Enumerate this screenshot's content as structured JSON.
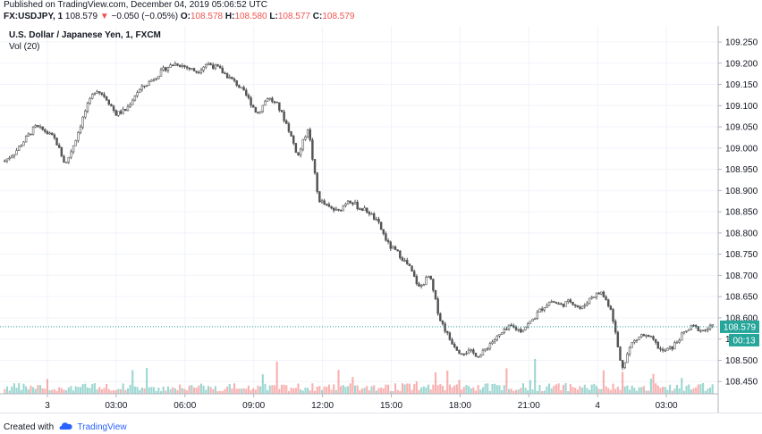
{
  "header": {
    "published": "Published on TradingView.com, December 04, 2019 05:06:52 UTC",
    "symbol": "FX:USDJPY, 1",
    "price": "108.579",
    "change": "−0.050 (−0.05%)",
    "o_label": "O:",
    "o_value": "108.578",
    "h_label": "H:",
    "h_value": "108.580",
    "l_label": "L:",
    "l_value": "108.577",
    "c_label": "C:",
    "c_value": "108.579"
  },
  "footer": {
    "created_with": "Created with",
    "brand": "TradingView"
  },
  "colors": {
    "up": "#26a69a",
    "down": "#ef5350",
    "candle": "#555555",
    "price_line": "#26a69a"
  },
  "chart_data": {
    "type": "line",
    "title": "U.S. Dollar / Japanese Yen, 1, FXCM",
    "volume_label": "Vol (20)",
    "ylim": [
      108.4,
      109.25
    ],
    "y_ticks": [
      "109.250",
      "109.200",
      "109.150",
      "109.100",
      "109.050",
      "109.000",
      "108.950",
      "108.900",
      "108.850",
      "108.800",
      "108.750",
      "108.700",
      "108.650",
      "108.600",
      "108.550",
      "108.500",
      "108.450"
    ],
    "x_ticks": [
      "3",
      "03:00",
      "06:00",
      "09:00",
      "12:00",
      "15:00",
      "18:00",
      "21:00",
      "4",
      "03:00"
    ],
    "last_price": "108.579",
    "countdown": "00:13",
    "series": [
      {
        "values": [
          108.97,
          108.99,
          109.02,
          109.05,
          109.04,
          109.02,
          108.96,
          109.02,
          109.09,
          109.14,
          109.12,
          109.08,
          109.09,
          109.13,
          109.15,
          109.17,
          109.19,
          109.2,
          109.19,
          109.18,
          109.2,
          109.19,
          109.17,
          109.15,
          109.12,
          109.08,
          109.12,
          109.1,
          109.05,
          108.98,
          109.05,
          108.88,
          108.86,
          108.85,
          108.88,
          108.86,
          108.85,
          108.82,
          108.77,
          108.75,
          108.72,
          108.67,
          108.7,
          108.6,
          108.55,
          108.52,
          108.52,
          108.51,
          108.54,
          108.56,
          108.58,
          108.57,
          108.59,
          108.62,
          108.64,
          108.63,
          108.64,
          108.62,
          108.65,
          108.66,
          108.62,
          108.48,
          108.54,
          108.56,
          108.55,
          108.52,
          108.53,
          108.56,
          108.58,
          108.57,
          108.579
        ]
      }
    ]
  }
}
